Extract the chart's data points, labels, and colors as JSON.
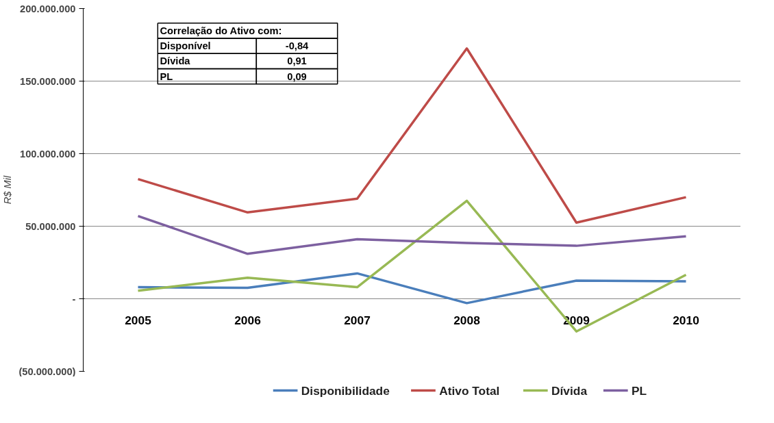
{
  "chart_data": {
    "type": "line",
    "ylabel": "R$ Mil",
    "categories": [
      "2005",
      "2006",
      "2007",
      "2008",
      "2009",
      "2010"
    ],
    "series": [
      {
        "name": "Disponibilidade",
        "color": "#4a7ebb",
        "values": [
          8000000,
          7500000,
          17500000,
          -3000000,
          12500000,
          12000000
        ]
      },
      {
        "name": "Ativo Total",
        "color": "#be4b48",
        "values": [
          82500000,
          59500000,
          69000000,
          172500000,
          52500000,
          70000000
        ]
      },
      {
        "name": "Dívida",
        "color": "#98b954",
        "values": [
          5500000,
          14500000,
          8000000,
          67500000,
          -22500000,
          16500000
        ]
      },
      {
        "name": "PL",
        "color": "#7d60a0",
        "values": [
          57000000,
          31000000,
          41000000,
          38500000,
          36500000,
          43000000
        ]
      }
    ],
    "ylim": [
      -50000000,
      200000000
    ],
    "yticks": [
      {
        "value": -50000000,
        "label": "(50.000.000)"
      },
      {
        "value": 0,
        "label": "-"
      },
      {
        "value": 50000000,
        "label": "50.000.000"
      },
      {
        "value": 100000000,
        "label": "100.000.000"
      },
      {
        "value": 150000000,
        "label": "150.000.000"
      },
      {
        "value": 200000000,
        "label": "200.000.000"
      }
    ],
    "grid": "y",
    "legend": "bottom",
    "marker": "none",
    "line_style": "solid",
    "annotations": [
      "Correlação do Ativo com:",
      "Disponível",
      "-0,84",
      "Dívida",
      "0,91",
      "PL",
      "0,09"
    ]
  }
}
